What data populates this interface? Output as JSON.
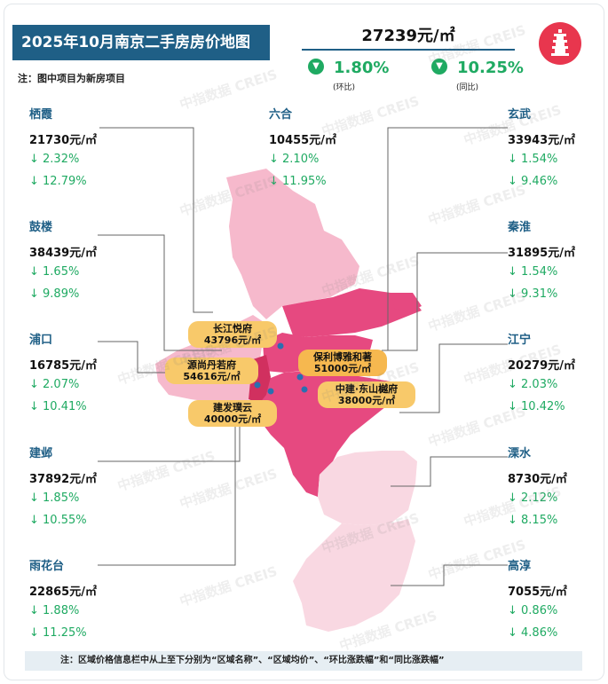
{
  "header": {
    "title": "2025年10月南京二手房房价地图",
    "note": "注：图中项目为新房项目",
    "avg_price": "27239元/㎡",
    "mom_value": "1.80%",
    "mom_label": "(环比)",
    "yoy_value": "10.25%",
    "yoy_label": "(同比)"
  },
  "watermark": "中指数据 CREIS",
  "districts": [
    {
      "name": "栖霞",
      "price": "21730元/㎡",
      "mom": "↓ 2.32%",
      "yoy": "↓ 12.79%"
    },
    {
      "name": "六合",
      "price": "10455元/㎡",
      "mom": "↓ 2.10%",
      "yoy": "↓ 11.95%"
    },
    {
      "name": "玄武",
      "price": "33943元/㎡",
      "mom": "↓ 1.54%",
      "yoy": "↓ 9.46%"
    },
    {
      "name": "鼓楼",
      "price": "38439元/㎡",
      "mom": "↓ 1.65%",
      "yoy": "↓ 9.89%"
    },
    {
      "name": "秦淮",
      "price": "31895元/㎡",
      "mom": "↓ 1.54%",
      "yoy": "↓ 9.31%"
    },
    {
      "name": "浦口",
      "price": "16785元/㎡",
      "mom": "↓ 2.07%",
      "yoy": "↓ 10.41%"
    },
    {
      "name": "江宁",
      "price": "20279元/㎡",
      "mom": "↓ 2.03%",
      "yoy": "↓ 10.42%"
    },
    {
      "name": "建邺",
      "price": "37892元/㎡",
      "mom": "↓ 1.85%",
      "yoy": "↓ 10.55%"
    },
    {
      "name": "溧水",
      "price": "8730元/㎡",
      "mom": "↓ 2.12%",
      "yoy": "↓ 8.15%"
    },
    {
      "name": "雨花台",
      "price": "22865元/㎡",
      "mom": "↓ 1.88%",
      "yoy": "↓ 11.25%"
    },
    {
      "name": "高淳",
      "price": "7055元/㎡",
      "mom": "↓ 0.86%",
      "yoy": "↓ 4.86%"
    }
  ],
  "projects": [
    {
      "name": "长江悦府",
      "price": "43796元/㎡"
    },
    {
      "name": "源尚丹若府",
      "price": "54616元/㎡"
    },
    {
      "name": "保利博雅和著",
      "price": "51000元/㎡"
    },
    {
      "name": "中建·东山樾府",
      "price": "38000元/㎡"
    },
    {
      "name": "建发璞云",
      "price": "40000元/㎡"
    }
  ],
  "footer_note": "注：区域价格信息栏中从上至下分别为“区域名称”、“区域均价”、“环比涨跌幅”和“同比涨跌幅”",
  "colors": {
    "title_bg": "#1f5f86",
    "down_green": "#1faa62",
    "map_dark": "#e64980",
    "map_mid": "#f07aa3",
    "map_light": "#f6b9cc",
    "map_pale": "#f9d8e2"
  }
}
